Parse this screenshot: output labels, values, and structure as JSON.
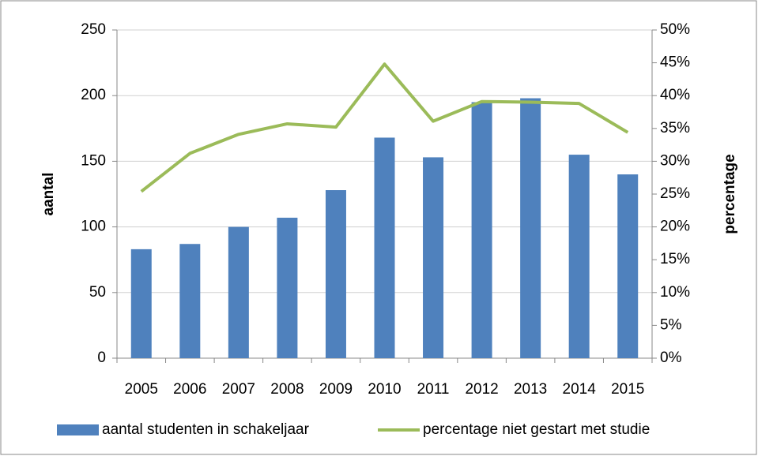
{
  "chart_data": {
    "type": "bar",
    "categories": [
      "2005",
      "2006",
      "2007",
      "2008",
      "2009",
      "2010",
      "2011",
      "2012",
      "2013",
      "2014",
      "2015"
    ],
    "ylabel": "aantal",
    "y2label": "percentage",
    "ylim": [
      0,
      250
    ],
    "yticks": [
      0,
      50,
      100,
      150,
      200,
      250
    ],
    "y2lim": [
      0,
      50
    ],
    "y2ticks": [
      {
        "value": 0,
        "label": "0%"
      },
      {
        "value": 5,
        "label": "5%"
      },
      {
        "value": 10,
        "label": "10%"
      },
      {
        "value": 15,
        "label": "15%"
      },
      {
        "value": 20,
        "label": "20%"
      },
      {
        "value": 25,
        "label": "25%"
      },
      {
        "value": 30,
        "label": "30%"
      },
      {
        "value": 35,
        "label": "35%"
      },
      {
        "value": 40,
        "label": "40%"
      },
      {
        "value": 45,
        "label": "45%"
      },
      {
        "value": 50,
        "label": "50%"
      }
    ],
    "grid": true,
    "legend": "bottom",
    "series": [
      {
        "name": "aantal studenten in schakeljaar",
        "type": "bar",
        "color": "#4f81bd",
        "values": [
          83,
          87,
          100,
          107,
          128,
          168,
          153,
          195,
          198,
          155,
          140
        ]
      },
      {
        "name": "percentage niet gestart met studie",
        "type": "line",
        "axis": "y2",
        "color": "#9bbb59",
        "values": [
          25.4,
          31.2,
          34.1,
          35.7,
          35.2,
          44.8,
          36.1,
          39.1,
          39.0,
          38.8,
          34.4
        ]
      }
    ]
  }
}
